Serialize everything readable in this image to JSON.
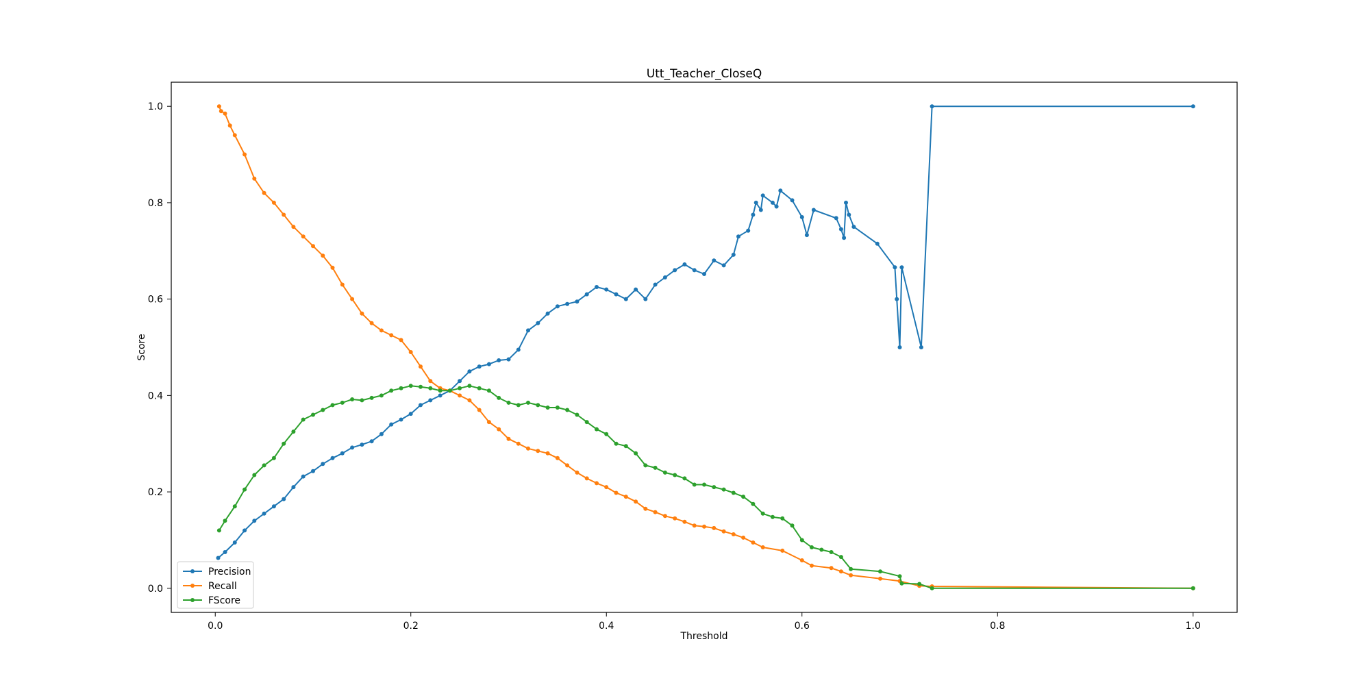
{
  "chart_data": {
    "type": "line",
    "title": "Utt_Teacher_CloseQ",
    "xlabel": "Threshold",
    "ylabel": "Score",
    "xlim": [
      -0.045,
      1.045
    ],
    "ylim": [
      -0.05,
      1.05
    ],
    "xticks": [
      0.0,
      0.2,
      0.4,
      0.6,
      0.8,
      1.0
    ],
    "xtick_labels": [
      "0.0",
      "0.2",
      "0.4",
      "0.6",
      "0.8",
      "1.0"
    ],
    "yticks": [
      0.0,
      0.2,
      0.4,
      0.6,
      0.8,
      1.0
    ],
    "ytick_labels": [
      "0.0",
      "0.2",
      "0.4",
      "0.6",
      "0.8",
      "1.0"
    ],
    "grid": false,
    "legend_position": "lower-left",
    "series": [
      {
        "name": "Precision",
        "color": "#1f77b4",
        "points": [
          [
            0.003,
            0.063
          ],
          [
            0.01,
            0.075
          ],
          [
            0.02,
            0.095
          ],
          [
            0.03,
            0.12
          ],
          [
            0.04,
            0.14
          ],
          [
            0.05,
            0.155
          ],
          [
            0.06,
            0.17
          ],
          [
            0.07,
            0.185
          ],
          [
            0.08,
            0.21
          ],
          [
            0.09,
            0.232
          ],
          [
            0.1,
            0.243
          ],
          [
            0.11,
            0.258
          ],
          [
            0.12,
            0.27
          ],
          [
            0.13,
            0.28
          ],
          [
            0.14,
            0.292
          ],
          [
            0.15,
            0.298
          ],
          [
            0.16,
            0.305
          ],
          [
            0.17,
            0.32
          ],
          [
            0.18,
            0.34
          ],
          [
            0.19,
            0.35
          ],
          [
            0.2,
            0.362
          ],
          [
            0.21,
            0.38
          ],
          [
            0.22,
            0.39
          ],
          [
            0.23,
            0.4
          ],
          [
            0.24,
            0.41
          ],
          [
            0.25,
            0.43
          ],
          [
            0.26,
            0.45
          ],
          [
            0.27,
            0.46
          ],
          [
            0.28,
            0.465
          ],
          [
            0.29,
            0.473
          ],
          [
            0.3,
            0.475
          ],
          [
            0.31,
            0.495
          ],
          [
            0.32,
            0.535
          ],
          [
            0.33,
            0.55
          ],
          [
            0.34,
            0.57
          ],
          [
            0.35,
            0.585
          ],
          [
            0.36,
            0.59
          ],
          [
            0.37,
            0.595
          ],
          [
            0.38,
            0.61
          ],
          [
            0.39,
            0.625
          ],
          [
            0.4,
            0.62
          ],
          [
            0.41,
            0.61
          ],
          [
            0.42,
            0.6
          ],
          [
            0.43,
            0.62
          ],
          [
            0.44,
            0.6
          ],
          [
            0.45,
            0.63
          ],
          [
            0.46,
            0.645
          ],
          [
            0.47,
            0.66
          ],
          [
            0.48,
            0.672
          ],
          [
            0.49,
            0.66
          ],
          [
            0.5,
            0.652
          ],
          [
            0.51,
            0.68
          ],
          [
            0.52,
            0.67
          ],
          [
            0.53,
            0.692
          ],
          [
            0.535,
            0.73
          ],
          [
            0.545,
            0.742
          ],
          [
            0.55,
            0.775
          ],
          [
            0.553,
            0.8
          ],
          [
            0.558,
            0.785
          ],
          [
            0.56,
            0.815
          ],
          [
            0.57,
            0.8
          ],
          [
            0.574,
            0.792
          ],
          [
            0.578,
            0.825
          ],
          [
            0.59,
            0.805
          ],
          [
            0.6,
            0.77
          ],
          [
            0.605,
            0.733
          ],
          [
            0.612,
            0.785
          ],
          [
            0.635,
            0.768
          ],
          [
            0.64,
            0.745
          ],
          [
            0.643,
            0.727
          ],
          [
            0.645,
            0.8
          ],
          [
            0.648,
            0.775
          ],
          [
            0.653,
            0.75
          ],
          [
            0.677,
            0.715
          ],
          [
            0.695,
            0.666
          ],
          [
            0.697,
            0.6
          ],
          [
            0.7,
            0.5
          ],
          [
            0.702,
            0.666
          ],
          [
            0.722,
            0.5
          ],
          [
            0.733,
            1.0
          ],
          [
            1.0,
            1.0
          ]
        ]
      },
      {
        "name": "Recall",
        "color": "#ff7f0e",
        "points": [
          [
            0.004,
            1.0
          ],
          [
            0.006,
            0.99
          ],
          [
            0.01,
            0.985
          ],
          [
            0.015,
            0.96
          ],
          [
            0.02,
            0.94
          ],
          [
            0.03,
            0.9
          ],
          [
            0.04,
            0.85
          ],
          [
            0.05,
            0.82
          ],
          [
            0.06,
            0.8
          ],
          [
            0.07,
            0.775
          ],
          [
            0.08,
            0.75
          ],
          [
            0.09,
            0.73
          ],
          [
            0.1,
            0.71
          ],
          [
            0.11,
            0.69
          ],
          [
            0.12,
            0.665
          ],
          [
            0.13,
            0.63
          ],
          [
            0.14,
            0.6
          ],
          [
            0.15,
            0.57
          ],
          [
            0.16,
            0.55
          ],
          [
            0.17,
            0.535
          ],
          [
            0.18,
            0.525
          ],
          [
            0.19,
            0.515
          ],
          [
            0.2,
            0.49
          ],
          [
            0.21,
            0.46
          ],
          [
            0.22,
            0.43
          ],
          [
            0.23,
            0.415
          ],
          [
            0.24,
            0.41
          ],
          [
            0.25,
            0.4
          ],
          [
            0.26,
            0.39
          ],
          [
            0.27,
            0.37
          ],
          [
            0.28,
            0.345
          ],
          [
            0.29,
            0.33
          ],
          [
            0.3,
            0.31
          ],
          [
            0.31,
            0.3
          ],
          [
            0.32,
            0.29
          ],
          [
            0.33,
            0.285
          ],
          [
            0.34,
            0.28
          ],
          [
            0.35,
            0.27
          ],
          [
            0.36,
            0.255
          ],
          [
            0.37,
            0.24
          ],
          [
            0.38,
            0.228
          ],
          [
            0.39,
            0.218
          ],
          [
            0.4,
            0.21
          ],
          [
            0.41,
            0.198
          ],
          [
            0.42,
            0.19
          ],
          [
            0.43,
            0.18
          ],
          [
            0.44,
            0.165
          ],
          [
            0.45,
            0.158
          ],
          [
            0.46,
            0.15
          ],
          [
            0.47,
            0.145
          ],
          [
            0.48,
            0.138
          ],
          [
            0.49,
            0.13
          ],
          [
            0.5,
            0.128
          ],
          [
            0.51,
            0.125
          ],
          [
            0.52,
            0.118
          ],
          [
            0.53,
            0.112
          ],
          [
            0.54,
            0.105
          ],
          [
            0.55,
            0.095
          ],
          [
            0.56,
            0.085
          ],
          [
            0.58,
            0.078
          ],
          [
            0.6,
            0.058
          ],
          [
            0.61,
            0.047
          ],
          [
            0.63,
            0.042
          ],
          [
            0.64,
            0.035
          ],
          [
            0.65,
            0.027
          ],
          [
            0.68,
            0.02
          ],
          [
            0.7,
            0.015
          ],
          [
            0.72,
            0.005
          ],
          [
            0.733,
            0.004
          ],
          [
            1.0,
            0.0
          ]
        ]
      },
      {
        "name": "FScore",
        "color": "#2ca02c",
        "points": [
          [
            0.004,
            0.12
          ],
          [
            0.01,
            0.14
          ],
          [
            0.02,
            0.17
          ],
          [
            0.03,
            0.205
          ],
          [
            0.04,
            0.235
          ],
          [
            0.05,
            0.255
          ],
          [
            0.06,
            0.27
          ],
          [
            0.07,
            0.3
          ],
          [
            0.08,
            0.325
          ],
          [
            0.09,
            0.35
          ],
          [
            0.1,
            0.36
          ],
          [
            0.11,
            0.37
          ],
          [
            0.12,
            0.38
          ],
          [
            0.13,
            0.385
          ],
          [
            0.14,
            0.392
          ],
          [
            0.15,
            0.39
          ],
          [
            0.16,
            0.395
          ],
          [
            0.17,
            0.4
          ],
          [
            0.18,
            0.41
          ],
          [
            0.19,
            0.415
          ],
          [
            0.2,
            0.42
          ],
          [
            0.21,
            0.418
          ],
          [
            0.22,
            0.415
          ],
          [
            0.23,
            0.41
          ],
          [
            0.24,
            0.41
          ],
          [
            0.25,
            0.415
          ],
          [
            0.26,
            0.42
          ],
          [
            0.27,
            0.415
          ],
          [
            0.28,
            0.41
          ],
          [
            0.29,
            0.395
          ],
          [
            0.3,
            0.385
          ],
          [
            0.31,
            0.38
          ],
          [
            0.32,
            0.385
          ],
          [
            0.33,
            0.38
          ],
          [
            0.34,
            0.375
          ],
          [
            0.35,
            0.375
          ],
          [
            0.36,
            0.37
          ],
          [
            0.37,
            0.36
          ],
          [
            0.38,
            0.345
          ],
          [
            0.39,
            0.33
          ],
          [
            0.4,
            0.32
          ],
          [
            0.41,
            0.3
          ],
          [
            0.42,
            0.295
          ],
          [
            0.43,
            0.28
          ],
          [
            0.44,
            0.255
          ],
          [
            0.45,
            0.25
          ],
          [
            0.46,
            0.24
          ],
          [
            0.47,
            0.235
          ],
          [
            0.48,
            0.228
          ],
          [
            0.49,
            0.215
          ],
          [
            0.5,
            0.215
          ],
          [
            0.51,
            0.21
          ],
          [
            0.52,
            0.205
          ],
          [
            0.53,
            0.198
          ],
          [
            0.54,
            0.19
          ],
          [
            0.55,
            0.175
          ],
          [
            0.56,
            0.155
          ],
          [
            0.57,
            0.148
          ],
          [
            0.58,
            0.145
          ],
          [
            0.59,
            0.13
          ],
          [
            0.6,
            0.1
          ],
          [
            0.61,
            0.085
          ],
          [
            0.62,
            0.08
          ],
          [
            0.63,
            0.075
          ],
          [
            0.64,
            0.065
          ],
          [
            0.65,
            0.04
          ],
          [
            0.68,
            0.035
          ],
          [
            0.7,
            0.025
          ],
          [
            0.702,
            0.01
          ],
          [
            0.72,
            0.009
          ],
          [
            0.733,
            0.0
          ],
          [
            1.0,
            0.0
          ]
        ]
      }
    ]
  }
}
